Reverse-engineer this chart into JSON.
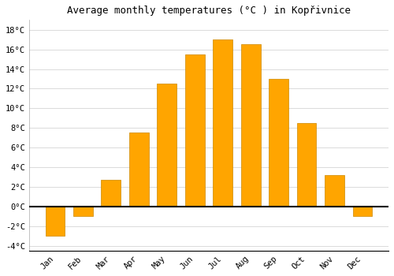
{
  "months": [
    "Jan",
    "Feb",
    "Mar",
    "Apr",
    "May",
    "Jun",
    "Jul",
    "Aug",
    "Sep",
    "Oct",
    "Nov",
    "Dec"
  ],
  "values": [
    -3.0,
    -1.0,
    2.7,
    7.5,
    12.5,
    15.5,
    17.0,
    16.5,
    13.0,
    8.5,
    3.2,
    -1.0
  ],
  "bar_color": "#FFA500",
  "bar_edge_color": "#CC8800",
  "title": "Average monthly temperatures (°C ) in Kopřivnice",
  "ylim": [
    -4.5,
    19
  ],
  "yticks": [
    -4,
    -2,
    0,
    2,
    4,
    6,
    8,
    10,
    12,
    14,
    16,
    18
  ],
  "background_color": "#ffffff",
  "grid_color": "#cccccc",
  "title_fontsize": 9,
  "tick_fontsize": 7.5,
  "bar_width": 0.7
}
